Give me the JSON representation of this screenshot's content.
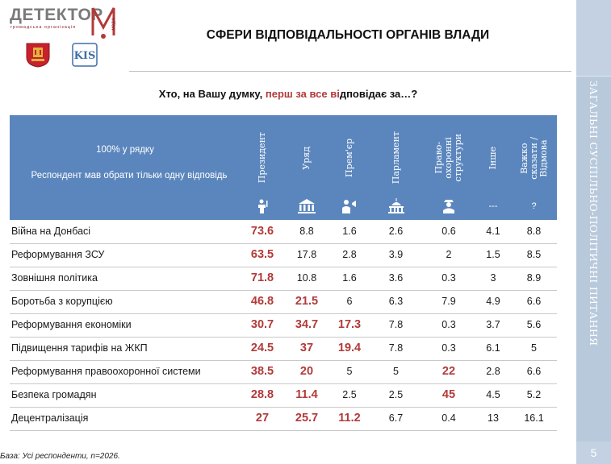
{
  "logo": {
    "brand": "ДЕТЕКТОР",
    "tagline": "громадська організація",
    "media_suffix": "медіа"
  },
  "slide": {
    "title": "СФЕРИ ВІДПОВІДАЛЬНОСТІ ОРГАНІВ ВЛАДИ",
    "question_prefix": "Хто, на Вашу думку, ",
    "question_highlight": "перш за все ві",
    "question_suffix": "дповідає за…?"
  },
  "sidebar": {
    "section_title": "ЗАГАЛЬНІ СУСПІЛЬНО-ПОЛІТИЧНІ ПИТАННЯ",
    "page_number": "5"
  },
  "table": {
    "corner_line1": "100% у рядку",
    "corner_line2": "Респондент мав обрати тільки одну відповідь",
    "columns": [
      {
        "label": "Президент",
        "icon": "president-podium-icon",
        "icon_text": ""
      },
      {
        "label": "Уряд",
        "icon": "government-building-icon",
        "icon_text": ""
      },
      {
        "label": "Прем'єр",
        "icon": "premier-speaker-icon",
        "icon_text": ""
      },
      {
        "label": "Парламент",
        "icon": "parliament-dome-icon",
        "icon_text": ""
      },
      {
        "label": "Право-\nохоронні\nструктури",
        "icon": "police-officer-icon",
        "icon_text": ""
      },
      {
        "label": "Інше",
        "icon": "dashes-icon",
        "icon_text": "---"
      },
      {
        "label": "Важко\nсказати /\nВідмова",
        "icon": "question-icon",
        "icon_text": "?"
      }
    ],
    "rows": [
      {
        "label": "Війна на Донбасі",
        "values": [
          "73.6",
          "8.8",
          "1.6",
          "2.6",
          "0.6",
          "4.1",
          "8.8"
        ],
        "highlight": [
          0
        ]
      },
      {
        "label": "Реформування ЗСУ",
        "values": [
          "63.5",
          "17.8",
          "2.8",
          "3.9",
          "2",
          "1.5",
          "8.5"
        ],
        "highlight": [
          0
        ]
      },
      {
        "label": "Зовнішня політика",
        "values": [
          "71.8",
          "10.8",
          "1.6",
          "3.6",
          "0.3",
          "3",
          "8.9"
        ],
        "highlight": [
          0
        ]
      },
      {
        "label": "Боротьба з корупцією",
        "values": [
          "46.8",
          "21.5",
          "6",
          "6.3",
          "7.9",
          "4.9",
          "6.6"
        ],
        "highlight": [
          0,
          1
        ]
      },
      {
        "label": "Реформування економіки",
        "values": [
          "30.7",
          "34.7",
          "17.3",
          "7.8",
          "0.3",
          "3.7",
          "5.6"
        ],
        "highlight": [
          0,
          1,
          2
        ]
      },
      {
        "label": "Підвищення тарифів на ЖКП",
        "values": [
          "24.5",
          "37",
          "19.4",
          "7.8",
          "0.3",
          "6.1",
          "5"
        ],
        "highlight": [
          0,
          1,
          2
        ]
      },
      {
        "label": "Реформування правоохоронної системи",
        "values": [
          "38.5",
          "20",
          "5",
          "5",
          "22",
          "2.8",
          "6.6"
        ],
        "highlight": [
          0,
          1,
          4
        ]
      },
      {
        "label": "Безпека громадян",
        "values": [
          "28.8",
          "11.4",
          "2.5",
          "2.5",
          "45",
          "4.5",
          "5.2"
        ],
        "highlight": [
          0,
          1,
          4
        ]
      },
      {
        "label": "Децентралізація",
        "values": [
          "27",
          "25.7",
          "11.2",
          "6.7",
          "0.4",
          "13",
          "16.1"
        ],
        "highlight": [
          0,
          1,
          2
        ]
      }
    ]
  },
  "footnote": "Базa: Усі респонденти, n=2026.",
  "colors": {
    "header_blue": "#5b86bd",
    "highlight_red": "#b23a3a",
    "sidebar": "#b9c9dc"
  }
}
